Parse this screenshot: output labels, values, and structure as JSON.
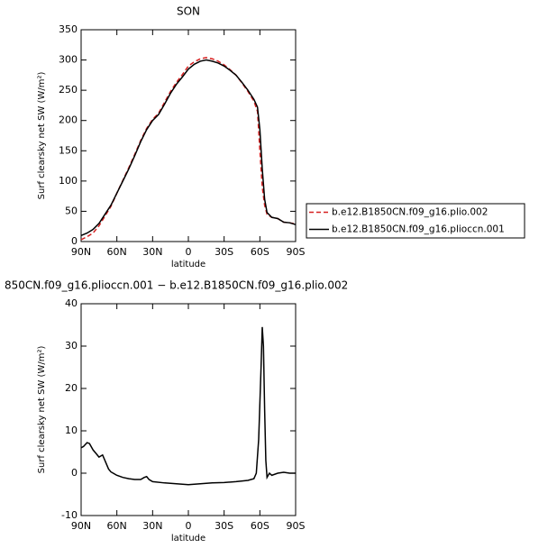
{
  "chart_data": [
    {
      "type": "line",
      "title": "SON",
      "xlabel": "latitude",
      "ylabel": "Surf clearsky net SW (W/m²)",
      "x": [
        90,
        85,
        80,
        75,
        70,
        65,
        60,
        55,
        50,
        45,
        40,
        35,
        30,
        25,
        20,
        15,
        10,
        5,
        0,
        -5,
        -10,
        -15,
        -20,
        -25,
        -30,
        -35,
        -40,
        -45,
        -50,
        -55,
        -58,
        -60,
        -62,
        -64,
        -66,
        -70,
        -75,
        -80,
        -85,
        -90
      ],
      "series": [
        {
          "name": "b.e12.B1850CN.f09_g16.plio.002",
          "color": "#d62020",
          "dashed": true,
          "values": [
            3,
            8,
            14,
            26,
            42,
            58,
            80,
            101,
            122,
            144,
            167,
            187,
            202,
            212,
            230,
            248,
            263,
            276,
            290,
            297,
            302,
            304,
            302,
            298,
            292,
            284,
            275,
            262,
            248,
            232,
            215,
            150,
            90,
            60,
            45,
            40,
            38,
            32,
            31,
            29
          ]
        },
        {
          "name": "b.e12.B1850CN.f09_g16.plioccn.001",
          "color": "#000000",
          "dashed": false,
          "values": [
            10,
            14,
            20,
            30,
            45,
            60,
            80,
            100,
            120,
            142,
            165,
            185,
            200,
            210,
            227,
            245,
            260,
            272,
            285,
            293,
            298,
            300,
            298,
            295,
            290,
            283,
            275,
            263,
            250,
            235,
            222,
            185,
            120,
            70,
            48,
            40,
            38,
            32,
            31,
            28
          ]
        }
      ],
      "xlim": [
        90,
        -90
      ],
      "xticks": [
        {
          "value": 90,
          "label": "90N"
        },
        {
          "value": 60,
          "label": "60N"
        },
        {
          "value": 30,
          "label": "30N"
        },
        0,
        {
          "value": -30,
          "label": "30S"
        },
        {
          "value": -60,
          "label": "60S"
        },
        {
          "value": -90,
          "label": "90S"
        }
      ],
      "ylim": [
        0,
        350
      ],
      "yticks": [
        0,
        50,
        100,
        150,
        200,
        250,
        300,
        350
      ],
      "legend": "right"
    },
    {
      "type": "line",
      "title": "850CN.f09_g16.plioccn.001 − b.e12.B1850CN.f09_g16.plio.002",
      "xlabel": "latitude",
      "ylabel": "Surf clearsky net SW (W/m²)",
      "x": [
        90,
        88,
        85,
        83,
        80,
        77,
        75,
        72,
        70,
        67,
        65,
        60,
        55,
        50,
        45,
        40,
        37,
        35,
        33,
        30,
        20,
        10,
        0,
        -10,
        -20,
        -30,
        -40,
        -50,
        -55,
        -57,
        -59,
        -61,
        -62,
        -63,
        -64,
        -65,
        -66,
        -68,
        -70,
        -75,
        -80,
        -85,
        -90
      ],
      "series": [
        {
          "color": "#000000",
          "dashed": false,
          "values": [
            6,
            6.3,
            7.2,
            7,
            5.5,
            4.5,
            3.8,
            4.3,
            3,
            1,
            0.3,
            -0.5,
            -1,
            -1.3,
            -1.5,
            -1.5,
            -1,
            -0.8,
            -1.5,
            -2,
            -2.3,
            -2.5,
            -2.7,
            -2.5,
            -2.3,
            -2.2,
            -2,
            -1.7,
            -1.3,
            0,
            8,
            25,
            34.5,
            30,
            15,
            3,
            -1,
            0,
            -0.5,
            0,
            0.2,
            0,
            0
          ]
        }
      ],
      "xlim": [
        90,
        -90
      ],
      "xticks": [
        {
          "value": 90,
          "label": "90N"
        },
        {
          "value": 60,
          "label": "60N"
        },
        {
          "value": 30,
          "label": "30N"
        },
        0,
        {
          "value": -30,
          "label": "30S"
        },
        {
          "value": -60,
          "label": "60S"
        },
        {
          "value": -90,
          "label": "90S"
        }
      ],
      "ylim": [
        -10,
        40
      ],
      "yticks": [
        -10,
        0,
        10,
        20,
        30,
        40
      ]
    }
  ]
}
